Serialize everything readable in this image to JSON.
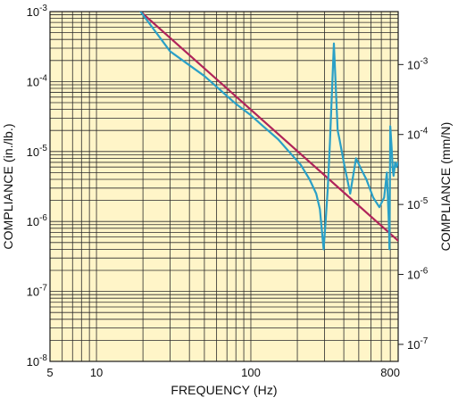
{
  "chart_data": {
    "type": "line",
    "title": "",
    "xlabel": "FREQUENCY (Hz)",
    "ylabel": "COMPLIANCE (in./lb.)",
    "ylabel_right": "COMPLIANCE (mm/N)",
    "xscale": "log",
    "yscale": "log",
    "xlim": [
      5,
      900
    ],
    "ylim": [
      1e-08,
      0.001
    ],
    "ylim_right": [
      5.71e-08,
      0.00571
    ],
    "grid": true,
    "legend": "none",
    "background_color": "#fff5c8",
    "grid_color": "#2a2a2a",
    "x_tick_labels": [
      {
        "value": 5,
        "label": "5"
      },
      {
        "value": 10,
        "label": "10"
      },
      {
        "value": 100,
        "label": "100"
      },
      {
        "value": 800,
        "label": "800"
      }
    ],
    "y_tick_labels": [
      {
        "value": 1e-08,
        "base": "10",
        "exp": "-8"
      },
      {
        "value": 1e-07,
        "base": "10",
        "exp": "-7"
      },
      {
        "value": 1e-06,
        "base": "10",
        "exp": "-6"
      },
      {
        "value": 1e-05,
        "base": "10",
        "exp": "-5"
      },
      {
        "value": 0.0001,
        "base": "10",
        "exp": "-4"
      },
      {
        "value": 0.001,
        "base": "10",
        "exp": "-3"
      }
    ],
    "y_right_tick_labels": [
      {
        "value": 1e-07,
        "base": "10",
        "exp": "-7"
      },
      {
        "value": 1e-06,
        "base": "10",
        "exp": "-6"
      },
      {
        "value": 1e-05,
        "base": "10",
        "exp": "-5"
      },
      {
        "value": 0.0001,
        "base": "10",
        "exp": "-4"
      },
      {
        "value": 0.001,
        "base": "10",
        "exp": "-3"
      }
    ],
    "series": [
      {
        "color": "#b0245a",
        "x": [
          19.3,
          900
        ],
        "y": [
          0.001,
          5.3e-07
        ]
      },
      {
        "color": "#2aa0c7",
        "x": [
          19.3,
          30,
          50,
          80,
          100,
          120,
          150,
          180,
          210,
          240,
          265,
          280,
          296,
          305,
          315,
          325,
          345,
          365,
          375,
          400,
          440,
          480,
          520,
          560,
          620,
          680,
          730,
          760,
          780,
          785,
          790,
          800,
          815,
          830,
          840,
          850,
          860,
          880,
          900
        ],
        "y": [
          0.001,
          0.00027,
          0.00012,
          4.8e-05,
          3.3e-05,
          2.3e-05,
          1.5e-05,
          9.5e-06,
          6.5e-06,
          4e-06,
          2.5e-06,
          1.5e-06,
          4e-07,
          1e-06,
          3e-06,
          1.3e-05,
          0.00035,
          2e-05,
          1.5e-05,
          7e-06,
          2.5e-06,
          8e-06,
          5.5e-06,
          4e-06,
          2.2e-06,
          1.6e-06,
          2.2e-06,
          5e-06,
          1.2e-06,
          8e-07,
          4e-07,
          2.3e-05,
          1.2e-05,
          5.5e-06,
          4.5e-06,
          5.5e-06,
          7e-06,
          6e-06,
          7e-06
        ]
      }
    ]
  }
}
